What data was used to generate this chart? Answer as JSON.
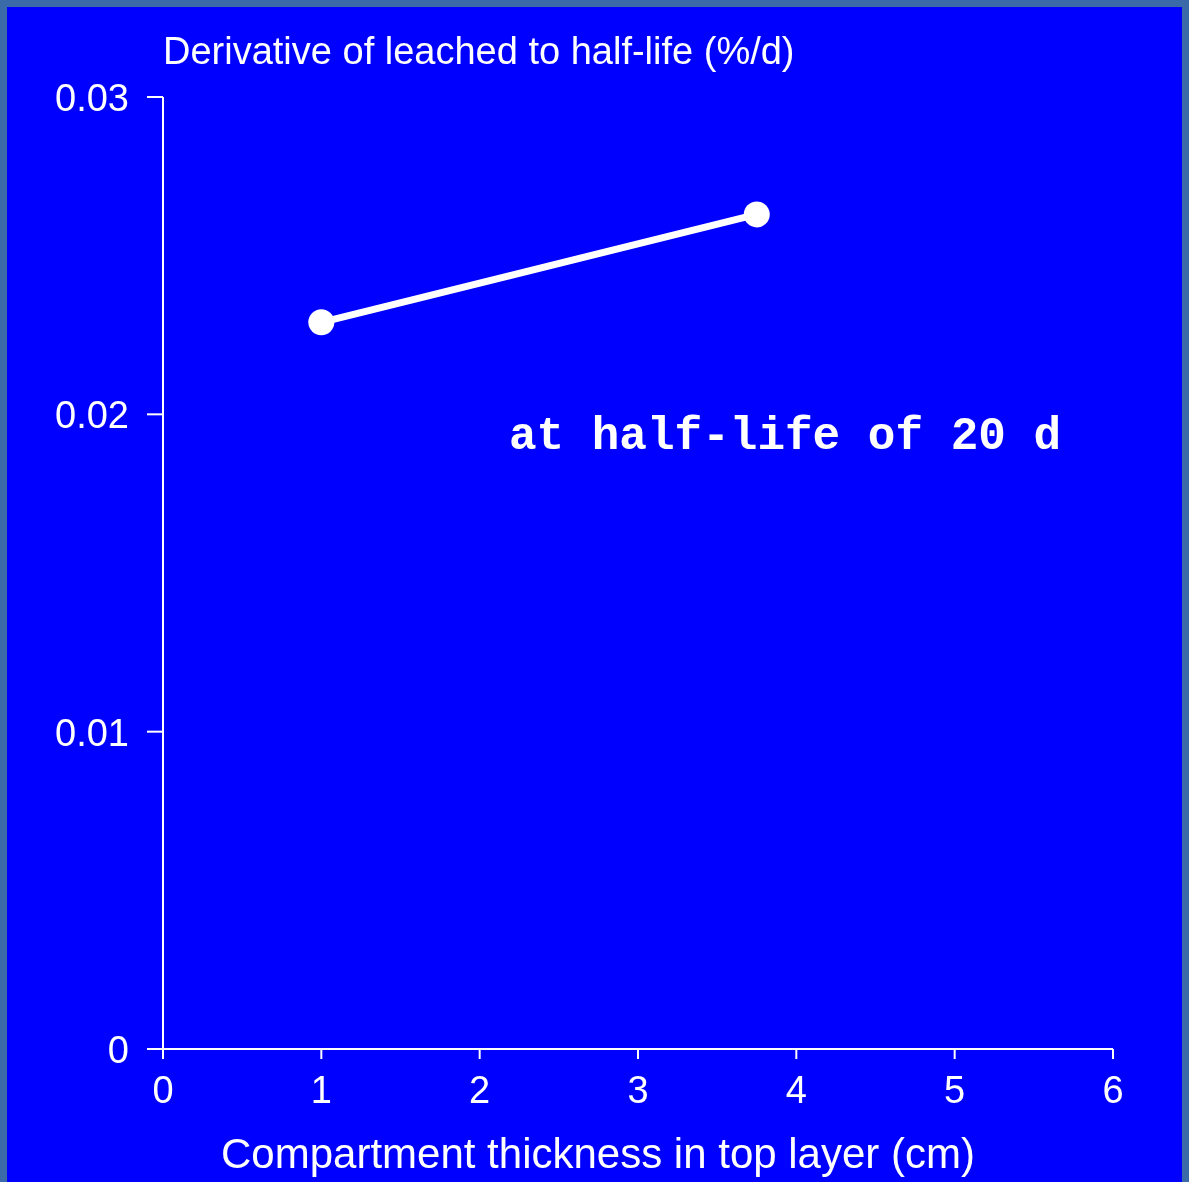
{
  "chart_data": {
    "type": "line",
    "ylabel": "Derivative of leached to half-life (%/d)",
    "xlabel": "Compartment thickness in top layer (cm)",
    "x": [
      1,
      3.75
    ],
    "series": [
      {
        "color": "#ffffff",
        "values": [
          0.0229,
          0.0263
        ]
      }
    ],
    "xlim": [
      0,
      6
    ],
    "xticks": [
      0,
      1,
      2,
      3,
      4,
      5,
      6
    ],
    "ylim": [
      0,
      0.03
    ],
    "yticks": [
      {
        "value": 0,
        "label": "0"
      },
      0.01,
      0.02,
      0.03
    ],
    "marker": "circle",
    "line_style": "solid",
    "annotations": [
      "at half-life of 20 d"
    ]
  }
}
